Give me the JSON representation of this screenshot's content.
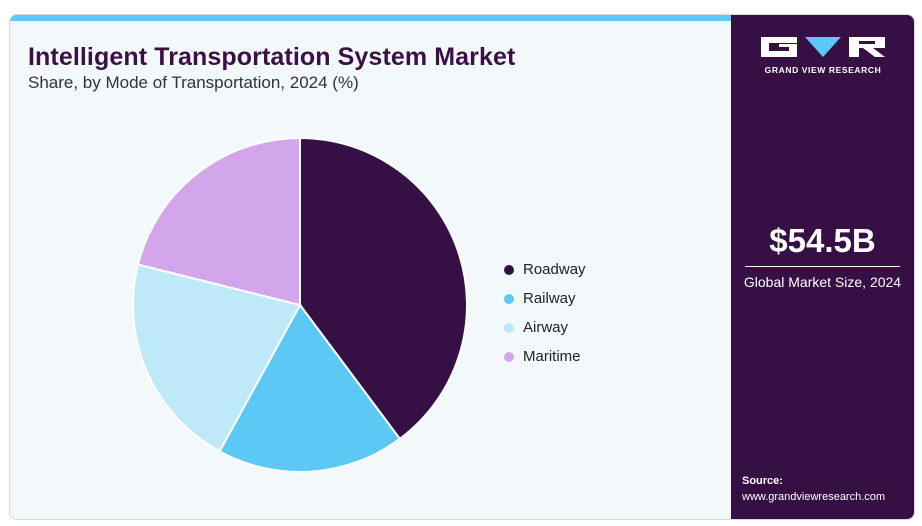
{
  "title": "Intelligent Transportation System Market",
  "subtitle": "Share, by Mode of Transportation, 2024 (%)",
  "chart_data": {
    "type": "pie",
    "title": "Intelligent Transportation System Market",
    "subtitle": "Share, by Mode of Transportation, 2024 (%)",
    "categories": [
      "Roadway",
      "Railway",
      "Airway",
      "Maritime"
    ],
    "values": [
      39.8,
      18.2,
      20.9,
      21.1
    ],
    "colors": [
      "#361044",
      "#5bc8f5",
      "#bde9f9",
      "#d3a6ec"
    ],
    "legend_position": "right",
    "start_angle": "top, clockwise"
  },
  "sidebar": {
    "logo_text": "GRAND VIEW RESEARCH",
    "market_size": "$54.5B",
    "market_size_label": "Global Market Size, 2024",
    "source_label": "Source:",
    "source_url": "www.grandviewresearch.com"
  },
  "colors": {
    "accent": "#5bc8f5",
    "brand_dark": "#361044",
    "background": "#f3f8fb"
  }
}
